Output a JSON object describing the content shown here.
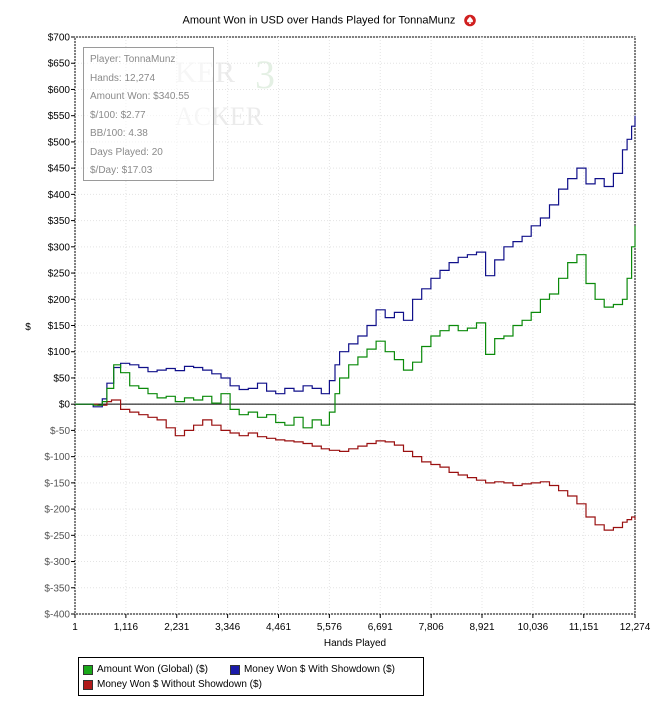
{
  "chart_data": {
    "type": "line",
    "title": "Amount Won in USD over Hands Played for TonnaMunz",
    "xlabel": "Hands Played",
    "ylabel": "$",
    "xlim": [
      1,
      12274
    ],
    "ylim": [
      -400,
      700
    ],
    "x_ticks": [
      1,
      1116,
      2231,
      3346,
      4461,
      5576,
      6691,
      7806,
      8921,
      10036,
      11151,
      12274
    ],
    "x_tick_labels": [
      "1",
      "1,116",
      "2,231",
      "3,346",
      "4,461",
      "5,576",
      "6,691",
      "7,806",
      "8,921",
      "10,036",
      "11,151",
      "12,274"
    ],
    "y_ticks": [
      700,
      650,
      600,
      550,
      500,
      450,
      400,
      350,
      300,
      250,
      200,
      150,
      100,
      50,
      0,
      -50,
      -100,
      -150,
      -200,
      -250,
      -300,
      -350,
      -400
    ],
    "y_tick_labels": [
      "$700",
      "$650",
      "$600",
      "$550",
      "$500",
      "$450",
      "$400",
      "$350",
      "$300",
      "$250",
      "$200",
      "$150",
      "$100",
      "$50",
      "$0",
      "$-50",
      "$-100",
      "$-150",
      "$-200",
      "$-250",
      "$-300",
      "$-350",
      "$-400"
    ],
    "grid": true,
    "legend_position": "bottom-left",
    "series": [
      {
        "name": "Amount Won (Global) ($)",
        "color": "#0a8a0a",
        "points": [
          [
            1,
            0
          ],
          [
            400,
            -2
          ],
          [
            600,
            5
          ],
          [
            700,
            30
          ],
          [
            850,
            75
          ],
          [
            1000,
            60
          ],
          [
            1200,
            35
          ],
          [
            1400,
            30
          ],
          [
            1600,
            20
          ],
          [
            1800,
            12
          ],
          [
            2000,
            15
          ],
          [
            2200,
            5
          ],
          [
            2400,
            12
          ],
          [
            2600,
            8
          ],
          [
            2800,
            15
          ],
          [
            3000,
            2
          ],
          [
            3200,
            20
          ],
          [
            3400,
            -10
          ],
          [
            3600,
            -20
          ],
          [
            3800,
            -15
          ],
          [
            4000,
            -25
          ],
          [
            4200,
            -20
          ],
          [
            4400,
            -35
          ],
          [
            4600,
            -40
          ],
          [
            4800,
            -25
          ],
          [
            5000,
            -45
          ],
          [
            5200,
            -30
          ],
          [
            5400,
            -40
          ],
          [
            5576,
            -15
          ],
          [
            5700,
            20
          ],
          [
            5800,
            50
          ],
          [
            6000,
            75
          ],
          [
            6200,
            90
          ],
          [
            6400,
            105
          ],
          [
            6600,
            120
          ],
          [
            6800,
            100
          ],
          [
            7000,
            85
          ],
          [
            7200,
            65
          ],
          [
            7400,
            80
          ],
          [
            7600,
            110
          ],
          [
            7800,
            130
          ],
          [
            8000,
            140
          ],
          [
            8200,
            150
          ],
          [
            8400,
            140
          ],
          [
            8600,
            145
          ],
          [
            8800,
            155
          ],
          [
            9000,
            95
          ],
          [
            9200,
            125
          ],
          [
            9400,
            130
          ],
          [
            9600,
            150
          ],
          [
            9800,
            160
          ],
          [
            10000,
            175
          ],
          [
            10200,
            200
          ],
          [
            10400,
            210
          ],
          [
            10600,
            240
          ],
          [
            10800,
            270
          ],
          [
            11000,
            285
          ],
          [
            11200,
            230
          ],
          [
            11400,
            200
          ],
          [
            11600,
            185
          ],
          [
            11800,
            190
          ],
          [
            12000,
            200
          ],
          [
            12100,
            240
          ],
          [
            12200,
            300
          ],
          [
            12274,
            340
          ]
        ]
      },
      {
        "name": "Money Won $ With Showdown ($)",
        "color": "#10108a",
        "points": [
          [
            1,
            0
          ],
          [
            400,
            -5
          ],
          [
            600,
            10
          ],
          [
            700,
            40
          ],
          [
            850,
            70
          ],
          [
            1000,
            78
          ],
          [
            1200,
            75
          ],
          [
            1400,
            70
          ],
          [
            1600,
            62
          ],
          [
            1800,
            65
          ],
          [
            2000,
            68
          ],
          [
            2200,
            64
          ],
          [
            2400,
            72
          ],
          [
            2600,
            70
          ],
          [
            2800,
            65
          ],
          [
            3000,
            58
          ],
          [
            3200,
            50
          ],
          [
            3400,
            35
          ],
          [
            3600,
            28
          ],
          [
            3800,
            30
          ],
          [
            4000,
            40
          ],
          [
            4200,
            25
          ],
          [
            4400,
            20
          ],
          [
            4600,
            30
          ],
          [
            4800,
            25
          ],
          [
            5000,
            35
          ],
          [
            5200,
            30
          ],
          [
            5400,
            20
          ],
          [
            5576,
            45
          ],
          [
            5700,
            75
          ],
          [
            5800,
            100
          ],
          [
            6000,
            115
          ],
          [
            6200,
            130
          ],
          [
            6400,
            150
          ],
          [
            6600,
            180
          ],
          [
            6800,
            165
          ],
          [
            7000,
            175
          ],
          [
            7200,
            160
          ],
          [
            7400,
            200
          ],
          [
            7600,
            220
          ],
          [
            7800,
            240
          ],
          [
            8000,
            255
          ],
          [
            8200,
            270
          ],
          [
            8400,
            280
          ],
          [
            8600,
            285
          ],
          [
            8800,
            290
          ],
          [
            9000,
            245
          ],
          [
            9200,
            275
          ],
          [
            9400,
            300
          ],
          [
            9600,
            310
          ],
          [
            9800,
            320
          ],
          [
            10000,
            340
          ],
          [
            10200,
            355
          ],
          [
            10400,
            380
          ],
          [
            10600,
            410
          ],
          [
            10800,
            430
          ],
          [
            11000,
            450
          ],
          [
            11200,
            420
          ],
          [
            11400,
            430
          ],
          [
            11600,
            415
          ],
          [
            11800,
            440
          ],
          [
            12000,
            485
          ],
          [
            12100,
            505
          ],
          [
            12200,
            530
          ],
          [
            12274,
            550
          ]
        ]
      },
      {
        "name": "Money Won $ Without Showdown ($)",
        "color": "#9a1010",
        "points": [
          [
            1,
            0
          ],
          [
            500,
            -2
          ],
          [
            700,
            5
          ],
          [
            800,
            8
          ],
          [
            1000,
            -10
          ],
          [
            1200,
            -15
          ],
          [
            1400,
            -20
          ],
          [
            1600,
            -25
          ],
          [
            1800,
            -30
          ],
          [
            2000,
            -45
          ],
          [
            2200,
            -60
          ],
          [
            2400,
            -50
          ],
          [
            2600,
            -40
          ],
          [
            2800,
            -30
          ],
          [
            3000,
            -40
          ],
          [
            3200,
            -50
          ],
          [
            3400,
            -55
          ],
          [
            3600,
            -60
          ],
          [
            3800,
            -55
          ],
          [
            4000,
            -62
          ],
          [
            4200,
            -65
          ],
          [
            4400,
            -68
          ],
          [
            4600,
            -70
          ],
          [
            4800,
            -72
          ],
          [
            5000,
            -75
          ],
          [
            5200,
            -80
          ],
          [
            5400,
            -85
          ],
          [
            5576,
            -88
          ],
          [
            5800,
            -90
          ],
          [
            6000,
            -85
          ],
          [
            6200,
            -80
          ],
          [
            6400,
            -75
          ],
          [
            6600,
            -70
          ],
          [
            6800,
            -72
          ],
          [
            7000,
            -78
          ],
          [
            7200,
            -90
          ],
          [
            7400,
            -100
          ],
          [
            7600,
            -110
          ],
          [
            7800,
            -115
          ],
          [
            8000,
            -120
          ],
          [
            8200,
            -130
          ],
          [
            8400,
            -135
          ],
          [
            8600,
            -140
          ],
          [
            8800,
            -145
          ],
          [
            9000,
            -150
          ],
          [
            9200,
            -148
          ],
          [
            9400,
            -150
          ],
          [
            9600,
            -155
          ],
          [
            9800,
            -152
          ],
          [
            10000,
            -150
          ],
          [
            10200,
            -148
          ],
          [
            10400,
            -155
          ],
          [
            10600,
            -165
          ],
          [
            10800,
            -175
          ],
          [
            11000,
            -190
          ],
          [
            11200,
            -215
          ],
          [
            11400,
            -230
          ],
          [
            11600,
            -240
          ],
          [
            11800,
            -235
          ],
          [
            12000,
            -225
          ],
          [
            12100,
            -220
          ],
          [
            12200,
            -215
          ],
          [
            12274,
            -220
          ]
        ]
      }
    ]
  },
  "stats": [
    "Player: TonnaMunz",
    "Hands: 12,274",
    "Amount Won: $340.55",
    "$/100: $2.77",
    "BB/100: 4.38",
    "Days Played: 20",
    "$/Day: $17.03"
  ]
}
